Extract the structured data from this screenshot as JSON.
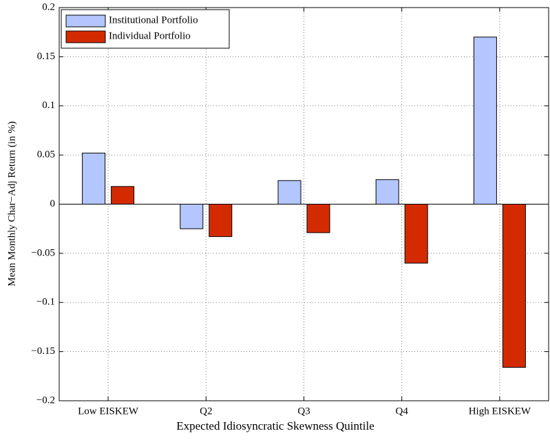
{
  "chart_data": {
    "type": "bar",
    "x_label": "Expected Idiosyncratic Skewness Quintile",
    "y_label": "Mean Monthly Char−Adj Return (in %)",
    "categories": [
      "Low EISKEW",
      "Q2",
      "Q3",
      "Q4",
      "High EISKEW"
    ],
    "series": [
      {
        "name": "Institutional Portfolio",
        "color": "#b3c6ff",
        "values": [
          0.052,
          -0.025,
          0.024,
          0.025,
          0.17
        ]
      },
      {
        "name": "Individual Portfolio",
        "color": "#d42a00",
        "values": [
          0.018,
          -0.033,
          -0.029,
          -0.06,
          -0.166
        ]
      }
    ],
    "ylim": [
      -0.2,
      0.2
    ],
    "yticks": [
      {
        "value": -0.2,
        "label": "−0.2"
      },
      {
        "value": -0.15,
        "label": "−0.15"
      },
      {
        "value": -0.1,
        "label": "−0.1"
      },
      {
        "value": -0.05,
        "label": "−0.05"
      },
      0,
      0.05,
      0.1,
      0.15,
      0.2
    ],
    "grid": true,
    "legend_position": "upper-left"
  }
}
